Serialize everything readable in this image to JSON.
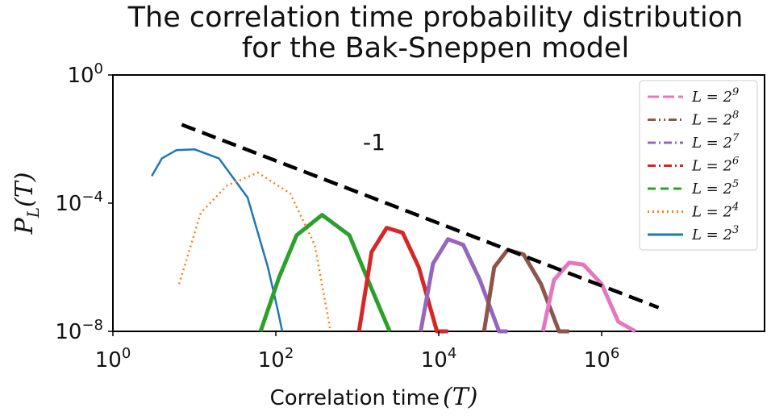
{
  "chart_data": {
    "type": "line",
    "title": [
      "The correlation time probability distribution",
      "for the Bak-Sneppen model"
    ],
    "xlabel": "Correlation time",
    "xlabel_symbol": "(T)",
    "ylabel": "P_L(T)",
    "xscale": "log",
    "yscale": "log",
    "xlim": [
      1,
      100000000
    ],
    "ylim": [
      1e-08,
      1
    ],
    "x_ticks": [
      {
        "base": "10",
        "exp": "0",
        "value": 1
      },
      {
        "base": "10",
        "exp": "2",
        "value": 100
      },
      {
        "base": "10",
        "exp": "4",
        "value": 10000
      },
      {
        "base": "10",
        "exp": "6",
        "value": 1000000
      }
    ],
    "y_ticks": [
      {
        "base": "10",
        "exp": "0",
        "value": 1
      },
      {
        "base": "10",
        "exp": "−4",
        "value": 0.0001
      },
      {
        "base": "10",
        "exp": "−8",
        "value": 1e-08
      }
    ],
    "reference_line": {
      "label": "-1",
      "slope": -1,
      "x": [
        7,
        5000000
      ],
      "y": [
        0.0282,
        5.5e-08
      ],
      "color": "#000000",
      "style": "dashed"
    },
    "legend_position": "upper right",
    "series": [
      {
        "name": "L = 2^9",
        "label_base": "L = 2",
        "label_exp": "9",
        "color": "#e377c2",
        "linestyle": "long-dash",
        "x": [
          190000,
          260000,
          400000,
          600000,
          1000000,
          1600000,
          2600000
        ],
        "y": [
          1e-08,
          4e-07,
          1.4e-06,
          1.2e-06,
          3e-07,
          2e-08,
          1e-08
        ],
        "thick": true
      },
      {
        "name": "L = 2^8",
        "label_base": "L = 2",
        "label_exp": "8",
        "color": "#8c564b",
        "linestyle": "dash-dot-dot",
        "x": [
          36000,
          48000,
          70000,
          110000,
          180000,
          300000,
          400000
        ],
        "y": [
          1e-08,
          1e-06,
          3.5e-06,
          2.5e-06,
          3e-07,
          1e-08,
          1e-08
        ],
        "thick": true
      },
      {
        "name": "L = 2^7",
        "label_base": "L = 2",
        "label_exp": "7",
        "color": "#9467bd",
        "linestyle": "dash-dot",
        "x": [
          6000,
          8500,
          13000,
          20000,
          32000,
          55000,
          70000
        ],
        "y": [
          1e-08,
          1.3e-06,
          7.5e-06,
          5e-06,
          4e-07,
          1e-08,
          1e-08
        ],
        "thick": true
      },
      {
        "name": "L = 2^6",
        "label_base": "L = 2",
        "label_exp": "6",
        "color": "#d62728",
        "linestyle": "dash-dot",
        "x": [
          1050,
          1500,
          2300,
          3600,
          5700,
          9500,
          13000
        ],
        "y": [
          1e-08,
          3e-06,
          1.7e-05,
          1.2e-05,
          1e-06,
          1e-08,
          1e-08
        ],
        "thick": true
      },
      {
        "name": "L = 2^5",
        "label_base": "L = 2",
        "label_exp": "5",
        "color": "#2ca02c",
        "linestyle": "dashed",
        "x": [
          65,
          110,
          180,
          370,
          800,
          1700,
          2500
        ],
        "y": [
          1e-08,
          5e-07,
          1e-05,
          4.3e-05,
          1e-05,
          1e-07,
          1e-08
        ],
        "thick": true
      },
      {
        "name": "L = 2^4",
        "label_base": "L = 2",
        "label_exp": "4",
        "color": "#ff7f0e",
        "linestyle": "dotted",
        "x": [
          6.5,
          12,
          25,
          60,
          150,
          300,
          470
        ],
        "y": [
          3e-07,
          5e-05,
          0.00035,
          0.0009,
          0.0002,
          5e-06,
          1e-08
        ],
        "thick": false
      },
      {
        "name": "L = 2^3",
        "label_base": "L = 2",
        "label_exp": "3",
        "color": "#1f77b4",
        "linestyle": "solid",
        "x": [
          3,
          4,
          6,
          10,
          20,
          45,
          80,
          105,
          120
        ],
        "y": [
          0.0007,
          0.0025,
          0.0045,
          0.0048,
          0.0025,
          0.00015,
          1e-06,
          5e-08,
          1e-08
        ],
        "thick": false
      }
    ]
  }
}
